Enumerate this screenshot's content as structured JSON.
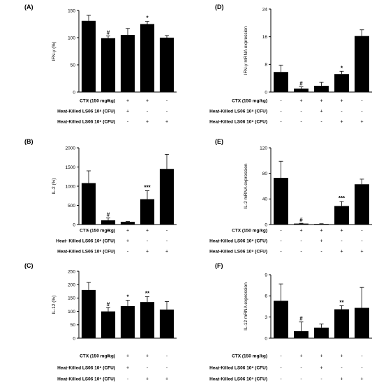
{
  "chart_data": [
    {
      "type": "bar",
      "panel_label": "(A)",
      "ylabel": "IFN-γ (%)",
      "ylim": [
        0,
        150
      ],
      "yticks": [
        "0",
        "50",
        "100",
        "150"
      ],
      "values": [
        131,
        99,
        105,
        125,
        100
      ],
      "errors": [
        10,
        4,
        12,
        5,
        4
      ],
      "annotations": [
        "",
        "#",
        "",
        "*",
        ""
      ]
    },
    {
      "type": "bar",
      "panel_label": "(D)",
      "ylabel": "IFN-γ mRNA expression",
      "ylim": [
        0,
        24
      ],
      "yticks": [
        "0",
        "8",
        "16",
        "24"
      ],
      "values": [
        5.8,
        1.0,
        1.8,
        5.2,
        16.2
      ],
      "errors": [
        2.0,
        0.5,
        1.0,
        0.8,
        1.8
      ],
      "annotations": [
        "",
        "#",
        "",
        "*",
        ""
      ]
    },
    {
      "type": "bar",
      "panel_label": "(B)",
      "ylabel": "IL-2 (%)",
      "ylim": [
        0,
        2000
      ],
      "yticks": [
        "0",
        "500",
        "1000",
        "1500",
        "2000"
      ],
      "values": [
        1080,
        110,
        70,
        660,
        1450
      ],
      "errors": [
        320,
        60,
        10,
        220,
        380
      ],
      "annotations": [
        "",
        "#",
        "",
        "***",
        ""
      ]
    },
    {
      "type": "bar",
      "panel_label": "(E)",
      "ylabel": "IL-2 mRNA expression",
      "ylim": [
        0,
        120
      ],
      "yticks": [
        "0",
        "40",
        "80",
        "120"
      ],
      "values": [
        73,
        1.5,
        1,
        29,
        63
      ],
      "errors": [
        26,
        0.5,
        0.3,
        7,
        8
      ],
      "annotations": [
        "",
        "#",
        "",
        "***",
        ""
      ]
    },
    {
      "type": "bar",
      "panel_label": "(C)",
      "ylabel": "IL-12 (%)",
      "ylim": [
        0,
        250
      ],
      "yticks": [
        "0",
        "50",
        "100",
        "150",
        "200",
        "250"
      ],
      "values": [
        180,
        100,
        120,
        135,
        107
      ],
      "errors": [
        28,
        15,
        22,
        20,
        30
      ],
      "annotations": [
        "",
        "#",
        "*",
        "**",
        ""
      ]
    },
    {
      "type": "bar",
      "panel_label": "(F)",
      "ylabel": "IL-12 mRNA expression",
      "ylim": [
        0,
        9
      ],
      "yticks": [
        "0",
        "3",
        "6",
        "9"
      ],
      "values": [
        5.3,
        1.0,
        1.5,
        4.1,
        4.3
      ],
      "errors": [
        2.4,
        1.3,
        0.5,
        0.5,
        2.9
      ],
      "annotations": [
        "",
        "#",
        "",
        "**",
        ""
      ]
    }
  ],
  "treatment_rows": {
    "A": [
      "CTX (150 mg/kg)",
      "Heat-Killed LS06 10⁸ (CFU)",
      "Heat-Killed LS06 10⁹ (CFU)"
    ],
    "D": [
      "CTX (150 mg/kg)",
      "Heat-Killed LS06 10⁸ (CFU)",
      "Heat-Killed LS06 10⁹ (CFU)"
    ],
    "B": [
      "CTX (150 mg/kg)",
      "Heat- Killed LS06 10⁸ (CFU)",
      "Heat-Killed LS06 10⁹ (CFU)"
    ],
    "E": [
      "CTX (150 mg/kg)",
      "Heat-Killed LS06 10⁸ (CFU)",
      "Heat-Killed LS06 10⁹ (CFU)"
    ],
    "C": [
      "CTX (150 mg/kg)",
      "Heat-Killed LS06 10⁸ (CFU)",
      "Heat-Killed LS06 10⁹ (CFU)"
    ],
    "F": [
      "CTX (150 mg/kg)",
      "Heat-Killed LS06 10⁸ (CFU)",
      "Heat-Killed LS06 10⁹ (CFU)"
    ]
  },
  "treatment_signs": [
    [
      "-",
      "+",
      "+",
      "+",
      "-"
    ],
    [
      "-",
      "-",
      "+",
      "-",
      "-"
    ],
    [
      "-",
      "-",
      "-",
      "+",
      "+"
    ]
  ],
  "colors": {
    "bar": "#000000",
    "axis": "#000000"
  }
}
